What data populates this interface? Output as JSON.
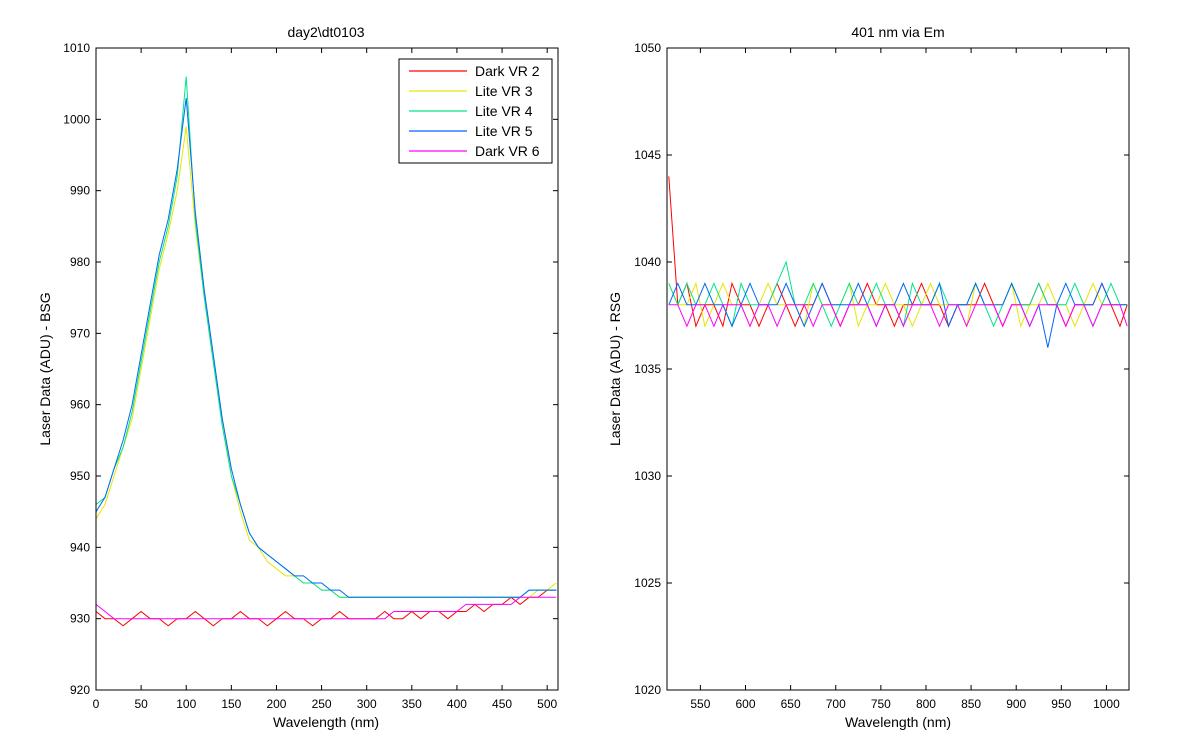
{
  "chart_data": [
    {
      "type": "line",
      "title": "day2\\dt0103",
      "xlabel": "Wavelength (nm)",
      "ylabel": "Laser Data (ADU) - BSG",
      "xlim": [
        0,
        512
      ],
      "ylim": [
        920,
        1010
      ],
      "xticks": [
        0,
        50,
        100,
        150,
        200,
        250,
        300,
        350,
        400,
        450,
        500
      ],
      "yticks": [
        920,
        930,
        940,
        950,
        960,
        970,
        980,
        990,
        1000,
        1010
      ],
      "legend_position": "top-right",
      "grid": false,
      "x": [
        0,
        10,
        20,
        30,
        40,
        50,
        60,
        70,
        80,
        90,
        100,
        110,
        120,
        130,
        140,
        150,
        160,
        170,
        180,
        190,
        200,
        210,
        220,
        230,
        240,
        250,
        260,
        270,
        280,
        290,
        300,
        310,
        320,
        330,
        340,
        350,
        360,
        370,
        380,
        390,
        400,
        410,
        420,
        430,
        440,
        450,
        460,
        470,
        480,
        490,
        500,
        510
      ],
      "series": [
        {
          "name": "Dark VR 2",
          "color": "#ff0000",
          "values": [
            931,
            930,
            930,
            929,
            930,
            931,
            930,
            930,
            929,
            930,
            930,
            931,
            930,
            929,
            930,
            930,
            931,
            930,
            930,
            929,
            930,
            931,
            930,
            930,
            929,
            930,
            930,
            931,
            930,
            930,
            930,
            930,
            931,
            930,
            930,
            931,
            930,
            931,
            931,
            930,
            931,
            931,
            932,
            931,
            932,
            932,
            933,
            932,
            933,
            933,
            934,
            934
          ]
        },
        {
          "name": "Lite VR 3",
          "color": "#e6e600",
          "values": [
            944,
            946,
            950,
            954,
            958,
            965,
            972,
            979,
            984,
            990,
            999,
            985,
            975,
            966,
            958,
            950,
            945,
            941,
            940,
            938,
            937,
            936,
            936,
            935,
            935,
            934,
            934,
            933,
            933,
            933,
            933,
            933,
            933,
            933,
            933,
            933,
            933,
            933,
            933,
            933,
            933,
            933,
            933,
            933,
            933,
            933,
            933,
            933,
            933,
            934,
            934,
            935
          ]
        },
        {
          "name": "Lite VR 4",
          "color": "#00e68a",
          "values": [
            946,
            947,
            951,
            954,
            959,
            966,
            973,
            980,
            985,
            992,
            1006,
            986,
            975,
            966,
            957,
            950,
            946,
            942,
            940,
            939,
            938,
            937,
            936,
            935,
            935,
            934,
            934,
            933,
            933,
            933,
            933,
            933,
            933,
            933,
            933,
            933,
            933,
            933,
            933,
            933,
            933,
            933,
            933,
            933,
            933,
            933,
            933,
            933,
            934,
            934,
            934,
            934
          ]
        },
        {
          "name": "Lite VR 5",
          "color": "#0066ff",
          "values": [
            945,
            947,
            951,
            955,
            960,
            967,
            974,
            981,
            986,
            993,
            1003,
            987,
            976,
            967,
            958,
            951,
            946,
            942,
            940,
            939,
            938,
            937,
            936,
            936,
            935,
            935,
            934,
            934,
            933,
            933,
            933,
            933,
            933,
            933,
            933,
            933,
            933,
            933,
            933,
            933,
            933,
            933,
            933,
            933,
            933,
            933,
            933,
            933,
            934,
            934,
            934,
            934
          ]
        },
        {
          "name": "Dark VR 6",
          "color": "#ff00ff",
          "values": [
            932,
            931,
            930,
            930,
            930,
            930,
            930,
            930,
            930,
            930,
            930,
            930,
            930,
            930,
            930,
            930,
            930,
            930,
            930,
            930,
            930,
            930,
            930,
            930,
            930,
            930,
            930,
            930,
            930,
            930,
            930,
            930,
            930,
            931,
            931,
            931,
            931,
            931,
            931,
            931,
            931,
            932,
            932,
            932,
            932,
            932,
            932,
            933,
            933,
            933,
            933,
            933
          ]
        }
      ]
    },
    {
      "type": "line",
      "title": "401 nm via Em",
      "xlabel": "Wavelength (nm)",
      "ylabel": "Laser Data (ADU) - RSG",
      "xlim": [
        513,
        1025
      ],
      "ylim": [
        1020,
        1050
      ],
      "xticks": [
        550,
        600,
        650,
        700,
        750,
        800,
        850,
        900,
        950,
        1000
      ],
      "yticks": [
        1020,
        1025,
        1030,
        1035,
        1040,
        1045,
        1050
      ],
      "grid": false,
      "x": [
        515,
        525,
        535,
        545,
        555,
        565,
        575,
        585,
        595,
        605,
        615,
        625,
        635,
        645,
        655,
        665,
        675,
        685,
        695,
        705,
        715,
        725,
        735,
        745,
        755,
        765,
        775,
        785,
        795,
        805,
        815,
        825,
        835,
        845,
        855,
        865,
        875,
        885,
        895,
        905,
        915,
        925,
        935,
        945,
        955,
        965,
        975,
        985,
        995,
        1005,
        1015,
        1023
      ],
      "series": [
        {
          "name": "Dark VR 2",
          "color": "#ff0000",
          "values": [
            1044,
            1038,
            1039,
            1037,
            1038,
            1038,
            1037,
            1039,
            1038,
            1038,
            1037,
            1038,
            1039,
            1038,
            1037,
            1038,
            1038,
            1039,
            1038,
            1037,
            1038,
            1038,
            1039,
            1038,
            1038,
            1037,
            1038,
            1038,
            1039,
            1038,
            1038,
            1037,
            1038,
            1038,
            1038,
            1039,
            1038,
            1037,
            1038,
            1038,
            1038,
            1039,
            1038,
            1038,
            1037,
            1038,
            1038,
            1038,
            1039,
            1038,
            1037,
            1038
          ]
        },
        {
          "name": "Lite VR 3",
          "color": "#e6e600",
          "values": [
            1039,
            1038,
            1038,
            1039,
            1037,
            1038,
            1039,
            1038,
            1038,
            1037,
            1038,
            1039,
            1038,
            1038,
            1038,
            1037,
            1039,
            1038,
            1038,
            1038,
            1039,
            1037,
            1038,
            1038,
            1039,
            1038,
            1038,
            1037,
            1038,
            1039,
            1038,
            1038,
            1038,
            1037,
            1039,
            1038,
            1038,
            1038,
            1039,
            1037,
            1038,
            1038,
            1039,
            1038,
            1038,
            1037,
            1038,
            1039,
            1038,
            1038,
            1038,
            1038
          ]
        },
        {
          "name": "Lite VR 4",
          "color": "#00e68a",
          "values": [
            1039,
            1038,
            1039,
            1038,
            1038,
            1039,
            1038,
            1037,
            1039,
            1038,
            1038,
            1038,
            1039,
            1040,
            1038,
            1038,
            1039,
            1038,
            1037,
            1038,
            1039,
            1038,
            1038,
            1039,
            1038,
            1038,
            1037,
            1039,
            1038,
            1038,
            1039,
            1038,
            1038,
            1038,
            1039,
            1038,
            1037,
            1038,
            1039,
            1038,
            1038,
            1039,
            1038,
            1038,
            1038,
            1039,
            1038,
            1037,
            1038,
            1039,
            1038,
            1038
          ]
        },
        {
          "name": "Lite VR 5",
          "color": "#0066ff",
          "values": [
            1038,
            1039,
            1038,
            1038,
            1039,
            1038,
            1038,
            1037,
            1038,
            1039,
            1038,
            1038,
            1038,
            1039,
            1038,
            1037,
            1038,
            1039,
            1038,
            1038,
            1038,
            1039,
            1038,
            1037,
            1038,
            1038,
            1039,
            1038,
            1038,
            1038,
            1039,
            1037,
            1038,
            1038,
            1039,
            1038,
            1038,
            1038,
            1039,
            1038,
            1037,
            1038,
            1036,
            1038,
            1039,
            1038,
            1038,
            1038,
            1039,
            1038,
            1038,
            1038
          ]
        },
        {
          "name": "Dark VR 6",
          "color": "#ff00ff",
          "values": [
            1038,
            1038,
            1037,
            1038,
            1038,
            1037,
            1038,
            1038,
            1038,
            1037,
            1038,
            1038,
            1037,
            1038,
            1038,
            1038,
            1037,
            1038,
            1038,
            1037,
            1038,
            1038,
            1038,
            1037,
            1038,
            1038,
            1037,
            1038,
            1038,
            1038,
            1037,
            1038,
            1038,
            1037,
            1038,
            1038,
            1038,
            1037,
            1038,
            1038,
            1037,
            1038,
            1038,
            1038,
            1037,
            1038,
            1038,
            1037,
            1038,
            1038,
            1038,
            1037
          ]
        }
      ]
    }
  ]
}
